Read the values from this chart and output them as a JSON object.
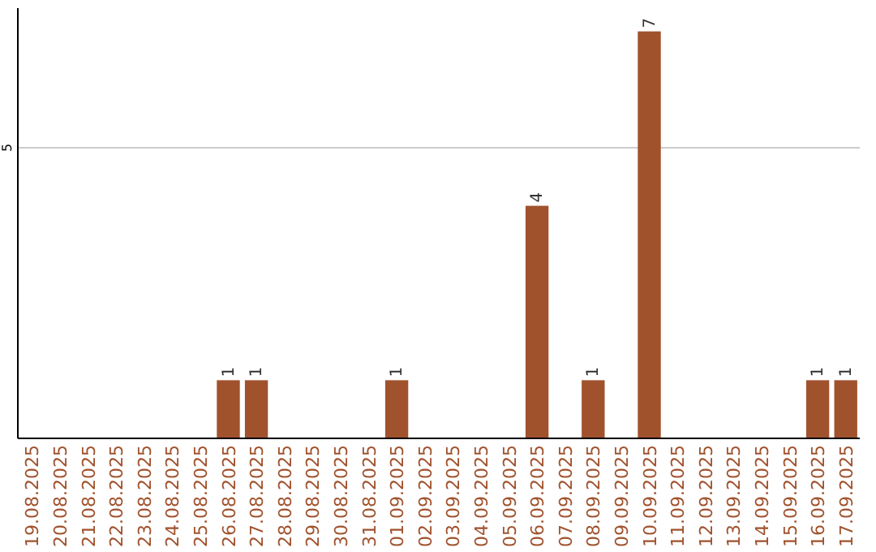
{
  "chart_data": {
    "type": "bar",
    "categories": [
      "19.08.2025",
      "20.08.2025",
      "21.08.2025",
      "22.08.2025",
      "23.08.2025",
      "24.08.2025",
      "25.08.2025",
      "26.08.2025",
      "27.08.2025",
      "28.08.2025",
      "29.08.2025",
      "30.08.2025",
      "31.08.2025",
      "01.09.2025",
      "02.09.2025",
      "03.09.2025",
      "04.09.2025",
      "05.09.2025",
      "06.09.2025",
      "07.09.2025",
      "08.09.2025",
      "09.09.2025",
      "10.09.2025",
      "11.09.2025",
      "12.09.2025",
      "13.09.2025",
      "14.09.2025",
      "15.09.2025",
      "16.09.2025",
      "17.09.2025"
    ],
    "series": [
      {
        "color": "#a0522d",
        "values": [
          0,
          0,
          0,
          0,
          0,
          0,
          0,
          1,
          1,
          0,
          0,
          0,
          0,
          1,
          0,
          0,
          0,
          0,
          4,
          0,
          1,
          0,
          7,
          0,
          0,
          0,
          0,
          0,
          1,
          1
        ],
        "value_labels": [
          null,
          null,
          null,
          null,
          null,
          null,
          null,
          "1",
          "1",
          null,
          null,
          null,
          null,
          "1",
          null,
          null,
          null,
          null,
          "4",
          null,
          "1",
          null,
          "7",
          null,
          null,
          null,
          null,
          null,
          "1",
          "1"
        ]
      }
    ],
    "ylim": [
      0,
      7.4
    ],
    "yticks": [
      5
    ],
    "grid": "y"
  }
}
